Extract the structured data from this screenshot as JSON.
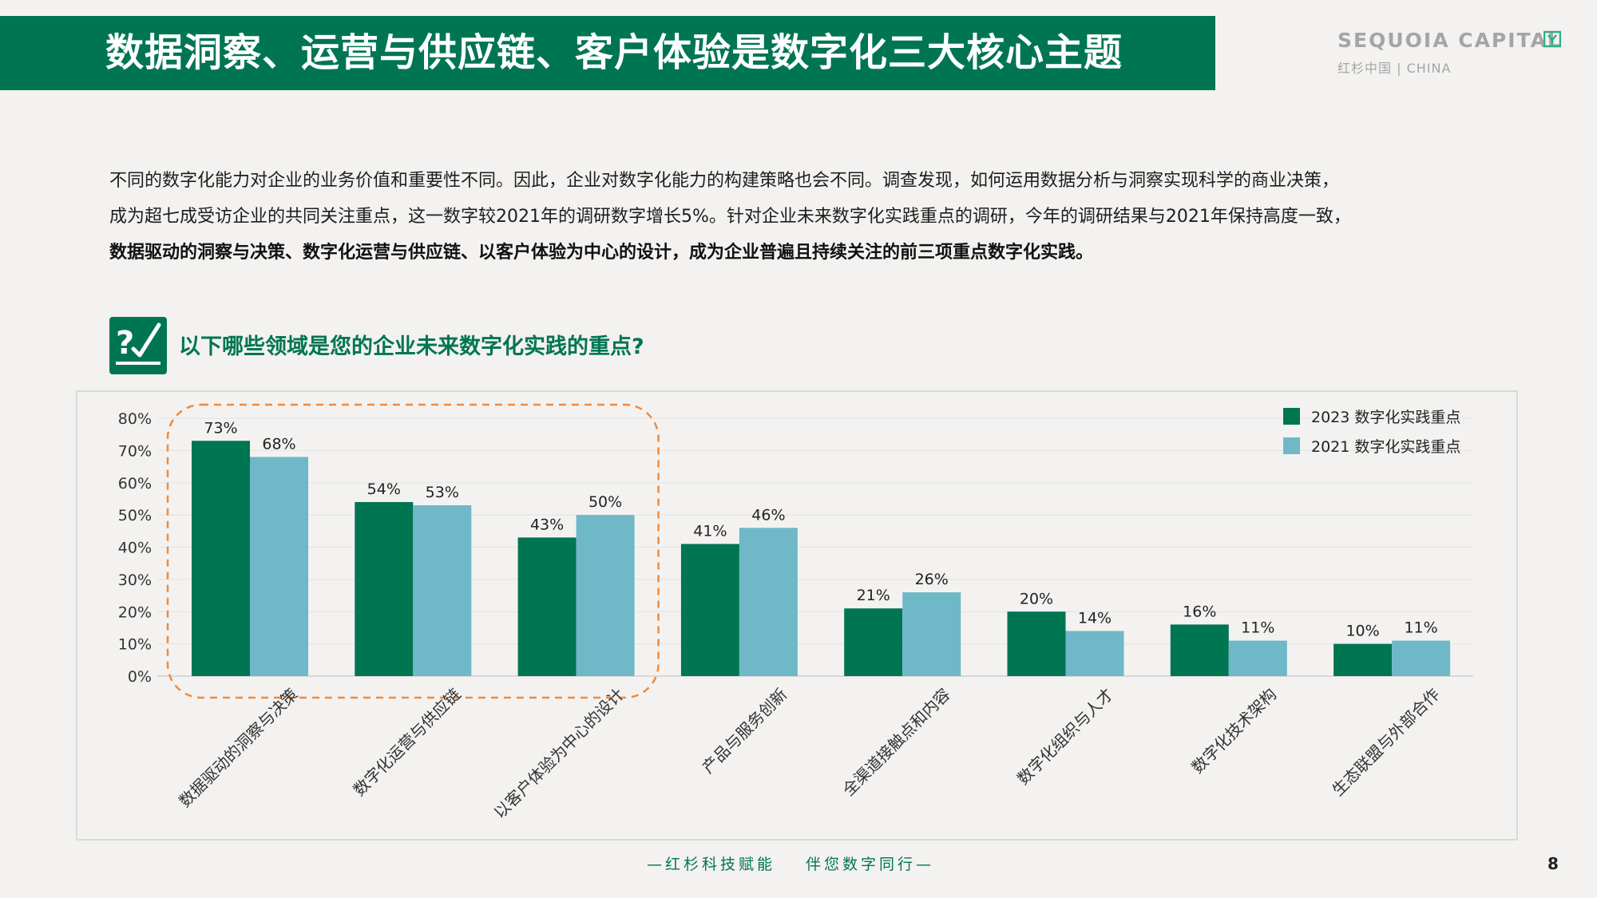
{
  "header": {
    "title": "数据洞察、运营与供应链、客户体验是数字化三大核心主题"
  },
  "logo": {
    "main": "SEQUOIA CAPITAL",
    "sub": "红杉中国 | CHINA"
  },
  "intro": {
    "line1": "不同的数字化能力对企业的业务价值和重要性不同。因此，企业对数字化能力的构建策略也会不同。调查发现，如何运用数据分析与洞察实现科学的商业决策，",
    "line2": "成为超七成受访企业的共同关注重点，这一数字较2021年的调研数字增长5%。针对企业未来数字化实践重点的调研，今年的调研结果与2021年保持高度一致，",
    "line3": "数据驱动的洞察与决策、数字化运营与供应链、以客户体验为中心的设计，成为企业普遍且持续关注的前三项重点数字化实践。"
  },
  "question": {
    "text": "以下哪些领域是您的企业未来数字化实践的重点?"
  },
  "colors": {
    "brand_green": "#007552",
    "series_2023": "#007552",
    "series_2021": "#6fb8c8",
    "highlight_border": "#f08a3c"
  },
  "chart_data": {
    "type": "bar",
    "categories": [
      "数据驱动的洞察与决策",
      "数字化运营与供应链",
      "以客户体验为中心的设计",
      "产品与服务创新",
      "全渠道接触点和内容",
      "数字化组织与人才",
      "数字化技术架构",
      "生态联盟与外部合作"
    ],
    "series": [
      {
        "name": "2023 数字化实践重点",
        "values": [
          73,
          54,
          43,
          41,
          21,
          20,
          16,
          10
        ]
      },
      {
        "name": "2021 数字化实践重点",
        "values": [
          68,
          53,
          50,
          46,
          26,
          14,
          11,
          11
        ]
      }
    ],
    "y_ticks": [
      "0%",
      "10%",
      "20%",
      "30%",
      "40%",
      "50%",
      "60%",
      "70%",
      "80%"
    ],
    "ylim": [
      0,
      80
    ],
    "value_suffix": "%",
    "legend_position": "top-right",
    "grid": true,
    "highlight_categories": [
      0,
      1,
      2
    ]
  },
  "footer": {
    "slogan_left": "—红杉科技赋能",
    "slogan_right": "伴您数字同行—",
    "page_number": "8"
  }
}
